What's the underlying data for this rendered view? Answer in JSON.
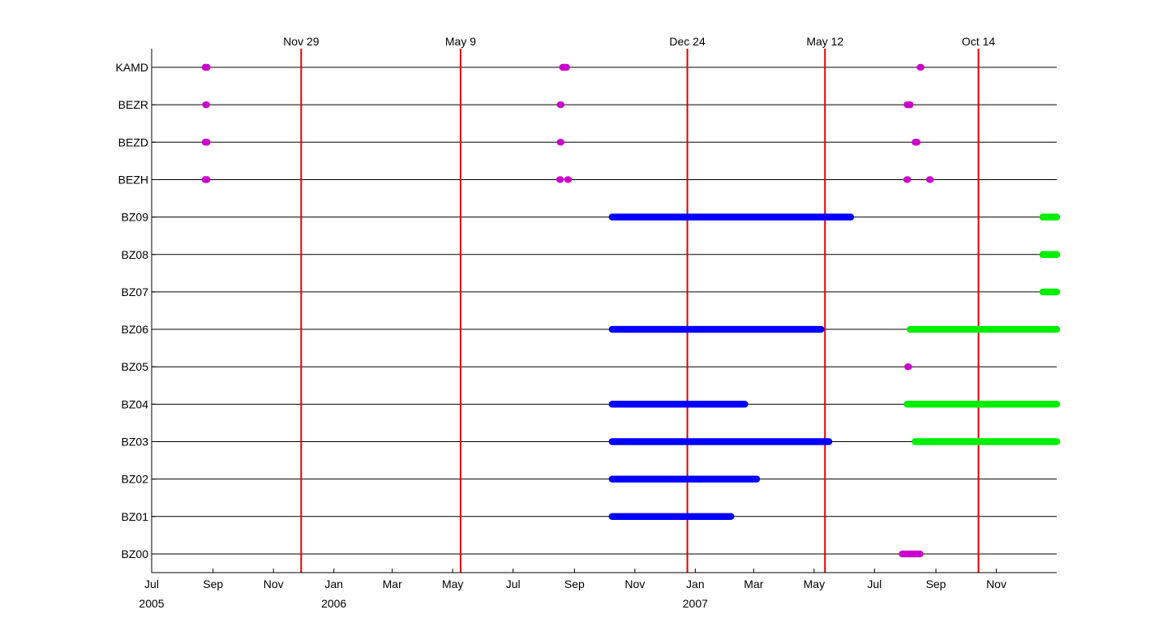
{
  "chart_data": {
    "type": "scatter",
    "title": "",
    "xlabel": "",
    "ylabel": "",
    "xlim": [
      "2005-07-01",
      "2008-01-01"
    ],
    "grid": false,
    "legend": "none",
    "x_ticks": [
      {
        "date": "2005-07-01",
        "label": "Jul"
      },
      {
        "date": "2005-09-01",
        "label": "Sep"
      },
      {
        "date": "2005-11-01",
        "label": "Nov"
      },
      {
        "date": "2006-01-01",
        "label": "Jan"
      },
      {
        "date": "2006-03-01",
        "label": "Mar"
      },
      {
        "date": "2006-05-01",
        "label": "May"
      },
      {
        "date": "2006-07-01",
        "label": "Jul"
      },
      {
        "date": "2006-09-01",
        "label": "Sep"
      },
      {
        "date": "2006-11-01",
        "label": "Nov"
      },
      {
        "date": "2007-01-01",
        "label": "Jan"
      },
      {
        "date": "2007-03-01",
        "label": "Mar"
      },
      {
        "date": "2007-05-01",
        "label": "May"
      },
      {
        "date": "2007-07-01",
        "label": "Jul"
      },
      {
        "date": "2007-09-01",
        "label": "Sep"
      },
      {
        "date": "2007-11-01",
        "label": "Nov"
      }
    ],
    "year_labels": [
      {
        "date": "2005-07-01",
        "label": "2005"
      },
      {
        "date": "2006-01-01",
        "label": "2006"
      },
      {
        "date": "2007-01-01",
        "label": "2007"
      }
    ],
    "event_lines": [
      {
        "date": "2005-11-29",
        "label": "Nov 29",
        "color": "#e00000"
      },
      {
        "date": "2006-05-09",
        "label": "May 9",
        "color": "#e00000"
      },
      {
        "date": "2006-12-24",
        "label": "Dec 24",
        "color": "#e00000"
      },
      {
        "date": "2007-05-12",
        "label": "May 12",
        "color": "#e00000"
      },
      {
        "date": "2007-10-14",
        "label": "Oct 14",
        "color": "#e00000"
      }
    ],
    "stations": [
      "KAMD",
      "BEZR",
      "BEZD",
      "BEZH",
      "BZ09",
      "BZ08",
      "BZ07",
      "BZ06",
      "BZ05",
      "BZ04",
      "BZ03",
      "BZ02",
      "BZ01",
      "BZ00"
    ],
    "colors": {
      "magenta": "#cc00cc",
      "blue": "#0000ff",
      "green": "#00ee00",
      "axis": "#000000"
    },
    "segments": [
      {
        "station": "KAMD",
        "color": "magenta",
        "start": "2005-08-24",
        "end": "2005-08-26"
      },
      {
        "station": "KAMD",
        "color": "magenta",
        "start": "2006-08-20",
        "end": "2006-08-24"
      },
      {
        "station": "KAMD",
        "color": "magenta",
        "start": "2007-08-16",
        "end": "2007-08-17"
      },
      {
        "station": "BEZR",
        "color": "magenta",
        "start": "2005-08-25",
        "end": "2005-08-25"
      },
      {
        "station": "BEZR",
        "color": "magenta",
        "start": "2006-08-18",
        "end": "2006-08-18"
      },
      {
        "station": "BEZR",
        "color": "magenta",
        "start": "2007-08-03",
        "end": "2007-08-06"
      },
      {
        "station": "BEZD",
        "color": "magenta",
        "start": "2005-08-24",
        "end": "2005-08-26"
      },
      {
        "station": "BEZD",
        "color": "magenta",
        "start": "2006-08-18",
        "end": "2006-08-18"
      },
      {
        "station": "BEZD",
        "color": "magenta",
        "start": "2007-08-11",
        "end": "2007-08-13"
      },
      {
        "station": "BEZH",
        "color": "magenta",
        "start": "2005-08-24",
        "end": "2005-08-26"
      },
      {
        "station": "BEZH",
        "color": "magenta",
        "start": "2006-08-17",
        "end": "2006-08-18"
      },
      {
        "station": "BEZH",
        "color": "magenta",
        "start": "2006-08-25",
        "end": "2006-08-26"
      },
      {
        "station": "BEZH",
        "color": "magenta",
        "start": "2007-08-03",
        "end": "2007-08-03"
      },
      {
        "station": "BEZH",
        "color": "magenta",
        "start": "2007-08-26",
        "end": "2007-08-26"
      },
      {
        "station": "BZ09",
        "color": "blue",
        "start": "2006-10-09",
        "end": "2007-06-07"
      },
      {
        "station": "BZ09",
        "color": "green",
        "start": "2007-12-18",
        "end": "2008-01-01"
      },
      {
        "station": "BZ08",
        "color": "green",
        "start": "2007-12-18",
        "end": "2008-01-01"
      },
      {
        "station": "BZ07",
        "color": "green",
        "start": "2007-12-18",
        "end": "2008-01-01"
      },
      {
        "station": "BZ06",
        "color": "blue",
        "start": "2006-10-09",
        "end": "2007-05-08"
      },
      {
        "station": "BZ06",
        "color": "green",
        "start": "2007-08-06",
        "end": "2008-01-01"
      },
      {
        "station": "BZ05",
        "color": "magenta",
        "start": "2007-08-04",
        "end": "2007-08-04"
      },
      {
        "station": "BZ04",
        "color": "blue",
        "start": "2006-10-09",
        "end": "2007-02-20"
      },
      {
        "station": "BZ04",
        "color": "green",
        "start": "2007-08-03",
        "end": "2008-01-01"
      },
      {
        "station": "BZ03",
        "color": "blue",
        "start": "2006-10-09",
        "end": "2007-05-16"
      },
      {
        "station": "BZ03",
        "color": "green",
        "start": "2007-08-11",
        "end": "2008-01-01"
      },
      {
        "station": "BZ02",
        "color": "blue",
        "start": "2006-10-09",
        "end": "2007-03-04"
      },
      {
        "station": "BZ01",
        "color": "blue",
        "start": "2006-10-09",
        "end": "2007-02-06"
      },
      {
        "station": "BZ00",
        "color": "magenta",
        "start": "2007-07-29",
        "end": "2007-08-16"
      }
    ]
  }
}
